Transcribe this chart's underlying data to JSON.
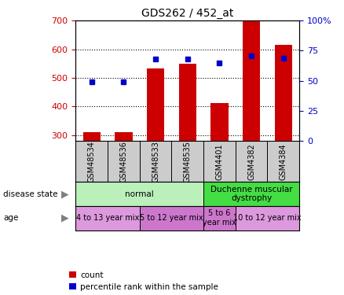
{
  "title": "GDS262 / 452_at",
  "samples": [
    "GSM48534",
    "GSM48536",
    "GSM48533",
    "GSM48535",
    "GSM4401",
    "GSM4382",
    "GSM4384"
  ],
  "count_values": [
    310,
    310,
    533,
    550,
    412,
    697,
    615
  ],
  "percentile_values": [
    49,
    49,
    68,
    68,
    65,
    71,
    69
  ],
  "ylim_left": [
    280,
    700
  ],
  "ylim_right": [
    0,
    100
  ],
  "yticks_left": [
    300,
    400,
    500,
    600,
    700
  ],
  "yticks_right": [
    0,
    25,
    50,
    75,
    100
  ],
  "bar_color": "#cc0000",
  "dot_color": "#0000cc",
  "bar_bottom": 280,
  "sample_bg_color": "#cccccc",
  "disease_state_groups": [
    {
      "label": "normal",
      "start": 0,
      "end": 4,
      "color": "#bbf0bb"
    },
    {
      "label": "Duchenne muscular\ndystrophy",
      "start": 4,
      "end": 7,
      "color": "#44dd44"
    }
  ],
  "age_groups": [
    {
      "label": "4 to 13 year mix",
      "start": 0,
      "end": 2,
      "color": "#dd99dd"
    },
    {
      "label": "5 to 12 year mix",
      "start": 2,
      "end": 4,
      "color": "#cc77cc"
    },
    {
      "label": "5 to 6\nyear mix",
      "start": 4,
      "end": 5,
      "color": "#cc77cc"
    },
    {
      "label": "10 to 12 year mix",
      "start": 5,
      "end": 7,
      "color": "#dd99dd"
    }
  ],
  "legend_items": [
    {
      "label": "count",
      "color": "#cc0000"
    },
    {
      "label": "percentile rank within the sample",
      "color": "#0000cc"
    }
  ],
  "left_axis_color": "#cc0000",
  "right_axis_color": "#0000cc",
  "figsize": [
    4.38,
    3.75
  ],
  "dpi": 100
}
